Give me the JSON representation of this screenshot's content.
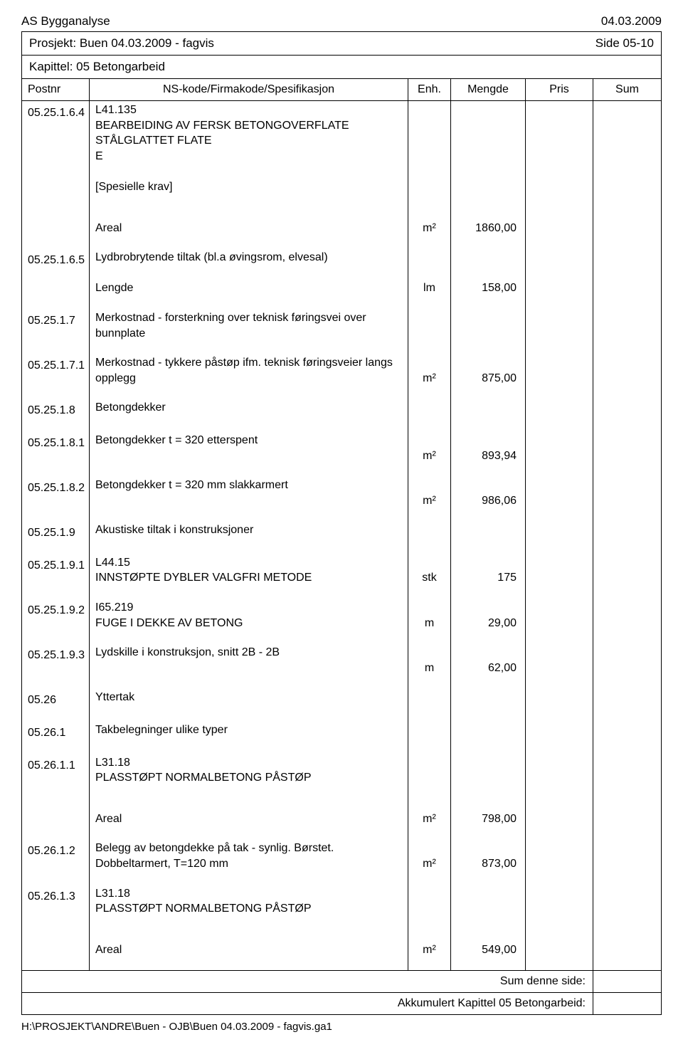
{
  "header": {
    "company": "AS Bygganalyse",
    "date": "04.03.2009",
    "project": "Prosjekt: Buen 04.03.2009 - fagvis",
    "page": "Side 05-10",
    "chapter": "Kapittel: 05 Betongarbeid"
  },
  "columns": {
    "postnr": "Postnr",
    "spec": "NS-kode/Firmakode/Spesifikasjon",
    "enh": "Enh.",
    "mengde": "Mengde",
    "pris": "Pris",
    "sum": "Sum"
  },
  "rows": [
    {
      "postnr": "05.25.1.6.4",
      "spec": "L41.135\nBEARBEIDING AV FERSK BETONGOVERFLATE\nSTÅLGLATTET FLATE\nE\n\n[Spesielle krav]",
      "enh": "",
      "mengde": ""
    },
    {
      "postnr": "",
      "spec": "Areal",
      "enh": "m²",
      "mengde": "1860,00",
      "pad": true
    },
    {
      "postnr": "05.25.1.6.5",
      "spec": "Lydbrobrytende tiltak (bl.a øvingsrom, elvesal)\n\nLengde",
      "enh": "\n\nlm",
      "mengde": "\n\n158,00"
    },
    {
      "postnr": "05.25.1.7",
      "spec": "Merkostnad - forsterkning over teknisk føringsvei over bunnplate",
      "enh": "",
      "mengde": ""
    },
    {
      "postnr": "05.25.1.7.1",
      "spec": "Merkostnad - tykkere påstøp ifm. teknisk føringsveier langs opplegg",
      "enh": "\nm²",
      "mengde": "\n875,00"
    },
    {
      "postnr": "05.25.1.8",
      "spec": "Betongdekker",
      "enh": "",
      "mengde": ""
    },
    {
      "postnr": "05.25.1.8.1",
      "spec": "Betongdekker t = 320 etterspent",
      "enh": "\nm²",
      "mengde": "\n893,94"
    },
    {
      "postnr": "05.25.1.8.2",
      "spec": "Betongdekker t = 320 mm slakkarmert",
      "enh": "\nm²",
      "mengde": "\n986,06"
    },
    {
      "postnr": "05.25.1.9",
      "spec": "Akustiske tiltak i konstruksjoner",
      "enh": "",
      "mengde": ""
    },
    {
      "postnr": "05.25.1.9.1",
      "spec": "L44.15\nINNSTØPTE DYBLER VALGFRI METODE",
      "enh": "\nstk",
      "mengde": "\n175"
    },
    {
      "postnr": "05.25.1.9.2",
      "spec": "I65.219\nFUGE I DEKKE AV BETONG",
      "enh": "\nm",
      "mengde": "\n29,00"
    },
    {
      "postnr": "05.25.1.9.3",
      "spec": "Lydskille i konstruksjon, snitt 2B - 2B",
      "enh": "\nm",
      "mengde": "\n62,00"
    },
    {
      "postnr": "05.26",
      "spec": "Yttertak",
      "enh": "",
      "mengde": ""
    },
    {
      "postnr": "05.26.1",
      "spec": "Takbelegninger ulike typer",
      "enh": "",
      "mengde": ""
    },
    {
      "postnr": "05.26.1.1",
      "spec": "L31.18\nPLASSTØPT NORMALBETONG PÅSTØP",
      "enh": "",
      "mengde": ""
    },
    {
      "postnr": "",
      "spec": "Areal",
      "enh": "m²",
      "mengde": "798,00",
      "pad": true
    },
    {
      "postnr": "05.26.1.2",
      "spec": "Belegg av betongdekke på tak - synlig. Børstet.\nDobbeltarmert, T=120 mm",
      "enh": "\nm²",
      "mengde": "\n873,00"
    },
    {
      "postnr": "05.26.1.3",
      "spec": "L31.18\nPLASSTØPT NORMALBETONG PÅSTØP",
      "enh": "",
      "mengde": ""
    },
    {
      "postnr": "",
      "spec": "Areal",
      "enh": "m²",
      "mengde": "549,00",
      "pad": true
    }
  ],
  "footer": {
    "line1": "Sum denne side:",
    "line2": "Akkumulert Kapittel 05 Betongarbeid:"
  },
  "bottom_path": "H:\\PROSJEKT\\ANDRE\\Buen - OJB\\Buen 04.03.2009 - fagvis.ga1"
}
